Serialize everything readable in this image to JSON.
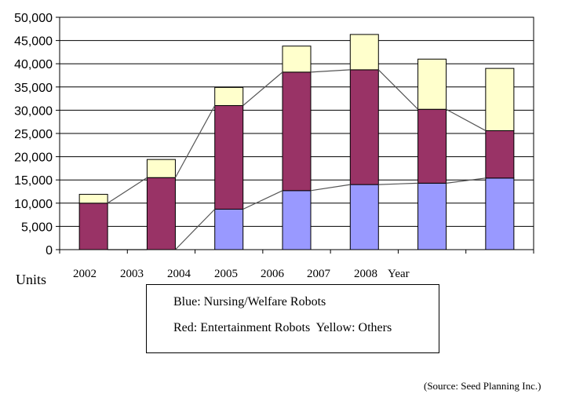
{
  "chart_data": {
    "type": "bar",
    "stacked": true,
    "categories": [
      "2002",
      "2003",
      "2004",
      "2005",
      "2006",
      "2007",
      "2008"
    ],
    "x_tick_labels": [
      "2002",
      "2003",
      "2004",
      "2005",
      "2006",
      "2007",
      "2008"
    ],
    "x_axis_suffix": "Year",
    "y_unit_label": "Units",
    "ylim": [
      0,
      50000
    ],
    "yticks": [
      0,
      5000,
      10000,
      15000,
      20000,
      25000,
      30000,
      35000,
      40000,
      45000,
      50000
    ],
    "ytick_labels": [
      "0",
      "5,000",
      "10,000",
      "15,000",
      "20,000",
      "25,000",
      "30,000",
      "35,000",
      "40,000",
      "45,000",
      "50,000"
    ],
    "grid": "horizontal",
    "series_lines": true,
    "series": [
      {
        "color": "#9999ff",
        "values": [
          0,
          0,
          8700,
          12700,
          14000,
          14300,
          15400
        ]
      },
      {
        "color": "#993366",
        "values": [
          10000,
          15500,
          22300,
          25500,
          24700,
          15900,
          10200
        ]
      },
      {
        "color": "#ffffcc",
        "values": [
          1900,
          3900,
          3900,
          5600,
          7600,
          10800,
          13400
        ]
      }
    ],
    "legend": {
      "line1": "Blue: Nursing/Welfare Robots",
      "line2": "Red: Entertainment Robots  Yellow: Others",
      "placement": "bottom-center"
    },
    "source": "(Source: Seed Planning Inc.)"
  }
}
